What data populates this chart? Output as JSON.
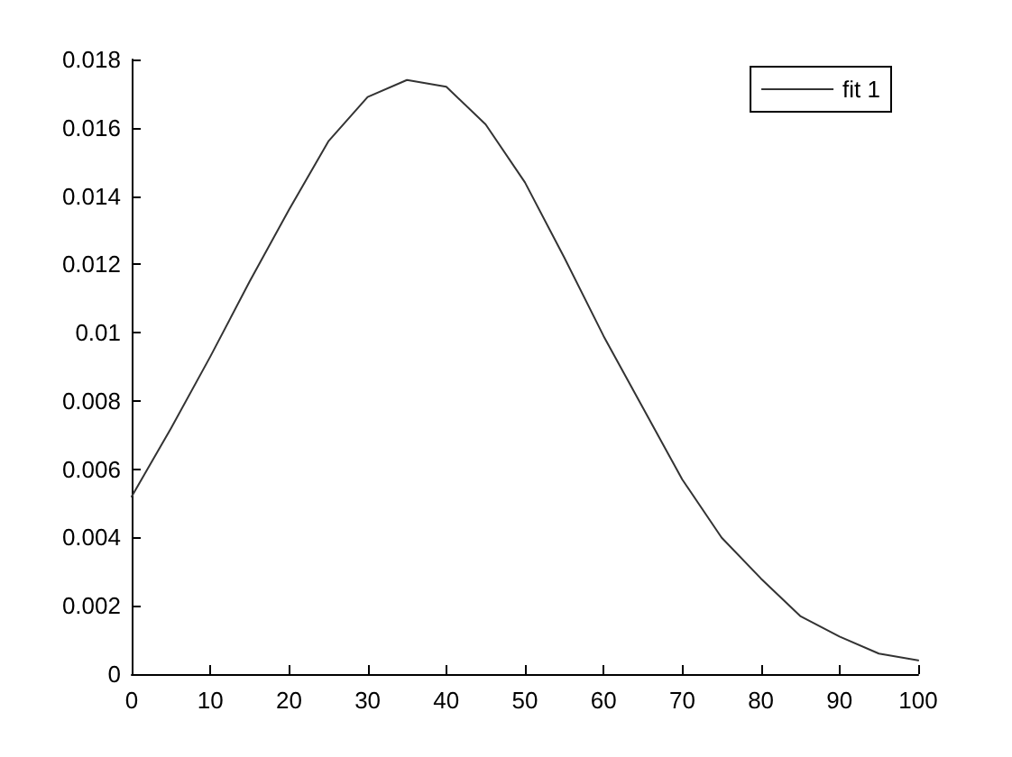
{
  "chart_data": {
    "type": "line",
    "x": [
      0,
      5,
      10,
      15,
      20,
      25,
      30,
      35,
      40,
      45,
      50,
      55,
      60,
      65,
      70,
      75,
      80,
      85,
      90,
      95,
      100
    ],
    "series": [
      {
        "name": "fit 1",
        "color": "#333333",
        "values": [
          0.0052,
          0.0072,
          0.0093,
          0.0115,
          0.0136,
          0.0156,
          0.0169,
          0.0174,
          0.0172,
          0.0161,
          0.0144,
          0.0122,
          0.0099,
          0.0078,
          0.0057,
          0.004,
          0.0028,
          0.0017,
          0.0011,
          0.0006,
          0.0004
        ]
      }
    ],
    "xlim": [
      0,
      100
    ],
    "xticks": [
      0,
      10,
      20,
      30,
      40,
      50,
      60,
      70,
      80,
      90,
      100
    ],
    "ylim": [
      0,
      0.018
    ],
    "yticks": [
      0,
      0.002,
      0.004,
      0.006,
      0.008,
      0.01,
      0.012,
      0.014,
      0.016,
      0.018
    ],
    "grid": false,
    "legend": "top right",
    "marker": "none",
    "line_style": "solid"
  }
}
